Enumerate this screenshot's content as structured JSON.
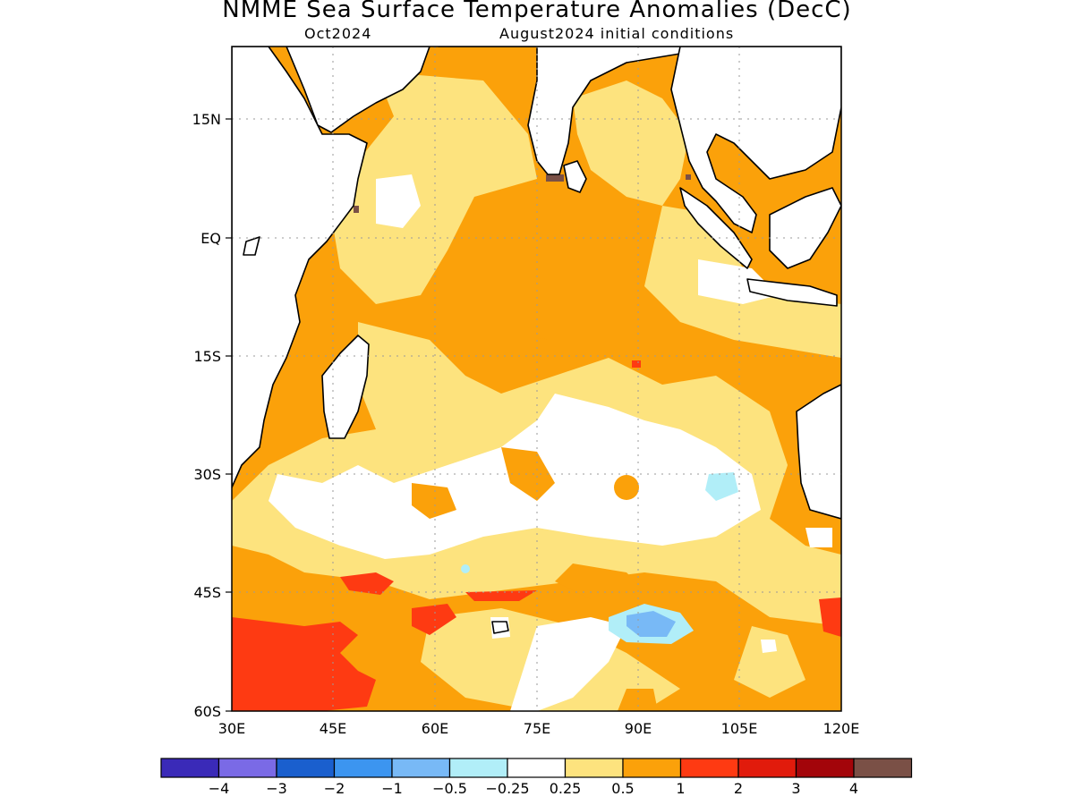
{
  "title": "NMME Sea Surface Temperature Anomalies (DecC)",
  "subtitle_left": "Oct2024",
  "subtitle_right": "August2024 initial conditions",
  "axes": {
    "lat_labels": [
      "15N",
      "EQ",
      "15S",
      "30S",
      "45S",
      "60S"
    ],
    "lon_labels": [
      "30E",
      "45E",
      "60E",
      "75E",
      "90E",
      "105E",
      "120E"
    ]
  },
  "colorbar": {
    "colors": [
      "#3a2ab8",
      "#7a6ae6",
      "#1a5fce",
      "#3c95f0",
      "#78b9f6",
      "#b1eef8",
      "#ffffff",
      "#fde37e",
      "#fba10a",
      "#fe3a12",
      "#e11b0c",
      "#a3050a",
      "#7a5046"
    ],
    "labels": [
      "−4",
      "−3",
      "−2",
      "−1",
      "−0.5",
      "−0.25",
      "0.25",
      "0.5",
      "1",
      "2",
      "3",
      "4"
    ]
  },
  "colors": {
    "land": "#ffffff",
    "coast": "#000000",
    "grid": "#9a9a9a"
  }
}
